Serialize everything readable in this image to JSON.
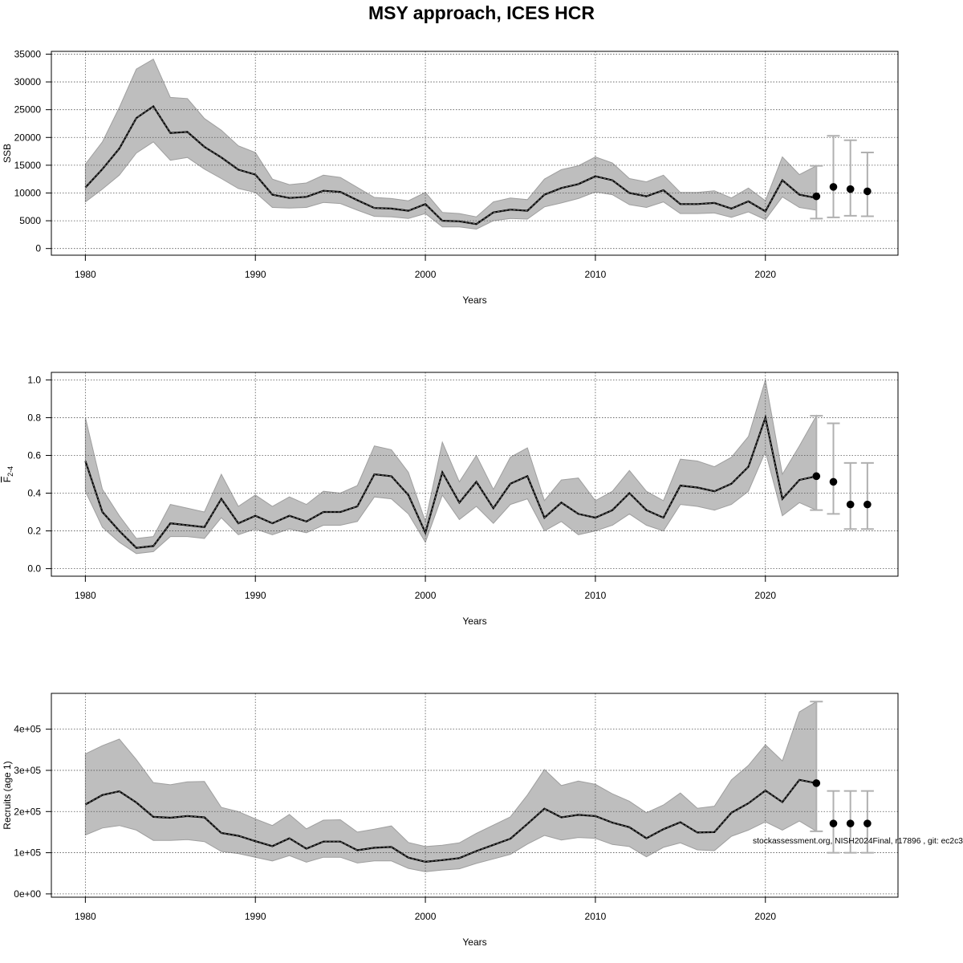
{
  "title": "MSY approach, ICES HCR",
  "footnote": "stockassessment.org, NISH2024Final, r17896 , git: ec2c3",
  "colors": {
    "band": "#bebebe",
    "band_edge": "#9f9f9f",
    "line": "#000000",
    "errorbar": "#b0b0b0",
    "grid": "#555555"
  },
  "chart_data": [
    {
      "type": "line",
      "ylabel": "SSB",
      "ylabel_sub": "",
      "xlabel": "Years",
      "xlim": [
        1978,
        2027.8
      ],
      "ylim": [
        -1200,
        35500
      ],
      "xticks": [
        1980,
        1990,
        2000,
        2010,
        2020
      ],
      "yticks": [
        0,
        5000,
        10000,
        15000,
        20000,
        25000,
        30000,
        35000
      ],
      "ytick_labels": [
        "0",
        "5000",
        "10000",
        "15000",
        "20000",
        "25000",
        "30000",
        "35000"
      ],
      "grid": true,
      "x": [
        1980,
        1981,
        1982,
        1983,
        1984,
        1985,
        1986,
        1987,
        1988,
        1989,
        1990,
        1991,
        1992,
        1993,
        1994,
        1995,
        1996,
        1997,
        1998,
        1999,
        2000,
        2001,
        2002,
        2003,
        2004,
        2005,
        2006,
        2007,
        2008,
        2009,
        2010,
        2011,
        2012,
        2013,
        2014,
        2015,
        2016,
        2017,
        2018,
        2019,
        2020,
        2021,
        2022,
        2023
      ],
      "estimate": [
        11000,
        14300,
        18000,
        23500,
        25600,
        20800,
        21000,
        18300,
        16400,
        14200,
        13300,
        9700,
        9100,
        9300,
        10400,
        10200,
        8700,
        7300,
        7200,
        6800,
        8000,
        5000,
        4900,
        4400,
        6500,
        7000,
        6800,
        9700,
        10900,
        11600,
        13000,
        12300,
        10000,
        9400,
        10500,
        8000,
        8000,
        8200,
        7200,
        8500,
        6700,
        12300,
        9700,
        9100
      ],
      "lower": [
        8400,
        10700,
        13200,
        17200,
        19200,
        15900,
        16400,
        14300,
        12600,
        10800,
        10100,
        7400,
        7300,
        7400,
        8300,
        8100,
        6900,
        5800,
        5700,
        5400,
        6300,
        3900,
        3900,
        3500,
        5000,
        5400,
        5300,
        7500,
        8200,
        9000,
        10200,
        9700,
        7900,
        7400,
        8400,
        6300,
        6300,
        6400,
        5600,
        6600,
        5200,
        9300,
        7400,
        6900
      ],
      "upper": [
        15200,
        19200,
        25400,
        32300,
        34100,
        27200,
        27000,
        23400,
        21300,
        18500,
        17300,
        12500,
        11500,
        11800,
        13200,
        12800,
        11000,
        9200,
        9000,
        8600,
        10100,
        6500,
        6300,
        5700,
        8400,
        9100,
        8800,
        12500,
        14200,
        14900,
        16500,
        15400,
        12600,
        12000,
        13200,
        10100,
        10100,
        10400,
        9100,
        10900,
        8600,
        16500,
        13300,
        14900
      ],
      "projection": [
        {
          "x": 2023,
          "value": 9400,
          "lower": 5400,
          "upper": 14900
        },
        {
          "x": 2024,
          "value": 11100,
          "lower": 5600,
          "upper": 20300
        },
        {
          "x": 2025,
          "value": 10700,
          "lower": 5900,
          "upper": 19500
        },
        {
          "x": 2026,
          "value": 10300,
          "lower": 5800,
          "upper": 17300
        }
      ]
    },
    {
      "type": "line",
      "ylabel": "F",
      "ylabel_sub": "2-4",
      "xlabel": "Years",
      "xlim": [
        1978,
        2027.8
      ],
      "ylim": [
        -0.04,
        1.04
      ],
      "xticks": [
        1980,
        1990,
        2000,
        2010,
        2020
      ],
      "yticks": [
        0.0,
        0.2,
        0.4,
        0.6,
        0.8,
        1.0
      ],
      "ytick_labels": [
        "0.0",
        "0.2",
        "0.4",
        "0.6",
        "0.8",
        "1.0"
      ],
      "grid": true,
      "x": [
        1980,
        1981,
        1982,
        1983,
        1984,
        1985,
        1986,
        1987,
        1988,
        1989,
        1990,
        1991,
        1992,
        1993,
        1994,
        1995,
        1996,
        1997,
        1998,
        1999,
        2000,
        2001,
        2002,
        2003,
        2004,
        2005,
        2006,
        2007,
        2008,
        2009,
        2010,
        2011,
        2012,
        2013,
        2014,
        2015,
        2016,
        2017,
        2018,
        2019,
        2020,
        2021,
        2022,
        2023
      ],
      "estimate": [
        0.57,
        0.3,
        0.2,
        0.11,
        0.12,
        0.24,
        0.23,
        0.22,
        0.37,
        0.24,
        0.28,
        0.24,
        0.28,
        0.25,
        0.3,
        0.3,
        0.33,
        0.5,
        0.49,
        0.39,
        0.19,
        0.51,
        0.35,
        0.46,
        0.32,
        0.45,
        0.49,
        0.27,
        0.35,
        0.29,
        0.27,
        0.31,
        0.4,
        0.31,
        0.27,
        0.44,
        0.43,
        0.41,
        0.45,
        0.54,
        0.8,
        0.37,
        0.47,
        0.49
      ],
      "lower": [
        0.41,
        0.22,
        0.14,
        0.08,
        0.09,
        0.17,
        0.17,
        0.16,
        0.27,
        0.18,
        0.21,
        0.18,
        0.21,
        0.19,
        0.23,
        0.23,
        0.25,
        0.38,
        0.37,
        0.29,
        0.14,
        0.39,
        0.26,
        0.33,
        0.24,
        0.34,
        0.37,
        0.2,
        0.25,
        0.18,
        0.2,
        0.23,
        0.29,
        0.23,
        0.2,
        0.34,
        0.33,
        0.31,
        0.34,
        0.41,
        0.62,
        0.28,
        0.35,
        0.31
      ],
      "upper": [
        0.8,
        0.42,
        0.28,
        0.16,
        0.17,
        0.34,
        0.32,
        0.3,
        0.5,
        0.33,
        0.39,
        0.33,
        0.38,
        0.34,
        0.41,
        0.4,
        0.44,
        0.65,
        0.63,
        0.51,
        0.25,
        0.67,
        0.46,
        0.6,
        0.42,
        0.59,
        0.64,
        0.36,
        0.47,
        0.48,
        0.36,
        0.41,
        0.52,
        0.41,
        0.36,
        0.58,
        0.57,
        0.54,
        0.59,
        0.7,
        1.0,
        0.5,
        0.65,
        0.81
      ],
      "projection": [
        {
          "x": 2023,
          "value": 0.49,
          "lower": 0.31,
          "upper": 0.81
        },
        {
          "x": 2024,
          "value": 0.46,
          "lower": 0.29,
          "upper": 0.77
        },
        {
          "x": 2025,
          "value": 0.34,
          "lower": 0.21,
          "upper": 0.56
        },
        {
          "x": 2026,
          "value": 0.34,
          "lower": 0.21,
          "upper": 0.56
        }
      ]
    },
    {
      "type": "line",
      "ylabel": "Recruits (age 1)",
      "ylabel_sub": "",
      "xlabel": "Years",
      "xlim": [
        1978,
        2027.8
      ],
      "ylim": [
        -8000,
        487000
      ],
      "xticks": [
        1980,
        1990,
        2000,
        2010,
        2020
      ],
      "yticks": [
        0,
        100000,
        200000,
        300000,
        400000
      ],
      "ytick_labels": [
        "0e+00",
        "1e+05",
        "2e+05",
        "3e+05",
        "4e+05"
      ],
      "grid": true,
      "x": [
        1980,
        1981,
        1982,
        1983,
        1984,
        1985,
        1986,
        1987,
        1988,
        1989,
        1990,
        1991,
        1992,
        1993,
        1994,
        1995,
        1996,
        1997,
        1998,
        1999,
        2000,
        2001,
        2002,
        2003,
        2004,
        2005,
        2006,
        2007,
        2008,
        2009,
        2010,
        2011,
        2012,
        2013,
        2014,
        2015,
        2016,
        2017,
        2018,
        2019,
        2020,
        2021,
        2022,
        2023
      ],
      "estimate": [
        217000,
        240000,
        249000,
        222000,
        187000,
        185000,
        189000,
        186000,
        148000,
        141000,
        128000,
        116000,
        135000,
        110000,
        127000,
        127000,
        106000,
        112000,
        114000,
        88000,
        78000,
        82000,
        87000,
        104000,
        119000,
        134000,
        170000,
        207000,
        186000,
        192000,
        189000,
        173000,
        162000,
        135000,
        157000,
        174000,
        149000,
        150000,
        197000,
        220000,
        251000,
        223000,
        277000,
        269000
      ],
      "lower": [
        143000,
        160000,
        166000,
        155000,
        130000,
        130000,
        132000,
        127000,
        103000,
        98000,
        89000,
        80000,
        93000,
        77000,
        89000,
        89000,
        75000,
        80000,
        80000,
        62000,
        54000,
        58000,
        61000,
        74000,
        85000,
        96000,
        121000,
        142000,
        131000,
        137000,
        135000,
        120000,
        115000,
        90000,
        113000,
        124000,
        107000,
        105000,
        140000,
        155000,
        175000,
        155000,
        177000,
        152000
      ],
      "upper": [
        340000,
        360000,
        376000,
        326000,
        270000,
        265000,
        272000,
        273000,
        210000,
        200000,
        182000,
        166000,
        193000,
        158000,
        179000,
        180000,
        150000,
        157000,
        165000,
        125000,
        115000,
        118000,
        124000,
        147000,
        167000,
        187000,
        240000,
        302000,
        263000,
        274000,
        266000,
        243000,
        225000,
        197000,
        216000,
        245000,
        208000,
        213000,
        277000,
        312000,
        362000,
        323000,
        442000,
        467000
      ],
      "projection": [
        {
          "x": 2023,
          "value": 269000,
          "lower": 152000,
          "upper": 467000
        },
        {
          "x": 2024,
          "value": 171000,
          "lower": 100000,
          "upper": 250000
        },
        {
          "x": 2025,
          "value": 171000,
          "lower": 100000,
          "upper": 250000
        },
        {
          "x": 2026,
          "value": 171000,
          "lower": 100000,
          "upper": 250000
        }
      ]
    }
  ]
}
